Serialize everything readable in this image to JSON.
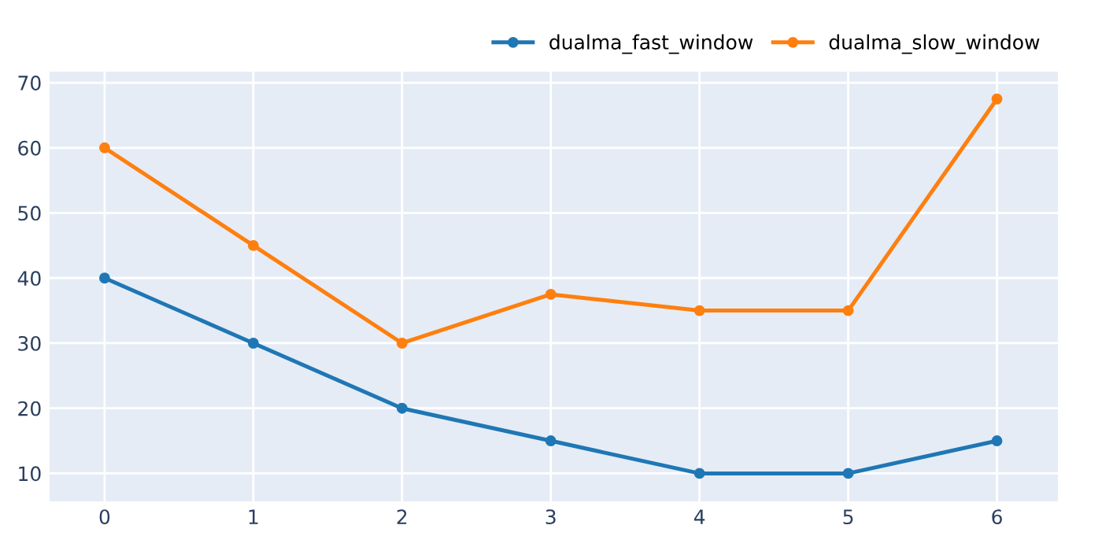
{
  "chart_data": {
    "type": "line",
    "x": [
      0,
      1,
      2,
      3,
      4,
      5,
      6
    ],
    "series": [
      {
        "name": "dualma_fast_window",
        "color": "#1f77b4",
        "values": [
          40,
          30,
          20,
          15,
          10,
          10,
          15
        ]
      },
      {
        "name": "dualma_slow_window",
        "color": "#ff7f0e",
        "values": [
          60,
          45,
          30,
          37.5,
          35,
          35,
          67.5
        ]
      }
    ],
    "xlim": [
      -0.37,
      6.41
    ],
    "xticks": [
      0,
      1,
      2,
      3,
      4,
      5,
      6
    ],
    "ylim": [
      5.7,
      71.7
    ],
    "yticks": [
      10,
      20,
      30,
      40,
      50,
      60,
      70
    ],
    "grid": true,
    "legend": "top right",
    "marker": "circle",
    "line_style": "solid"
  }
}
